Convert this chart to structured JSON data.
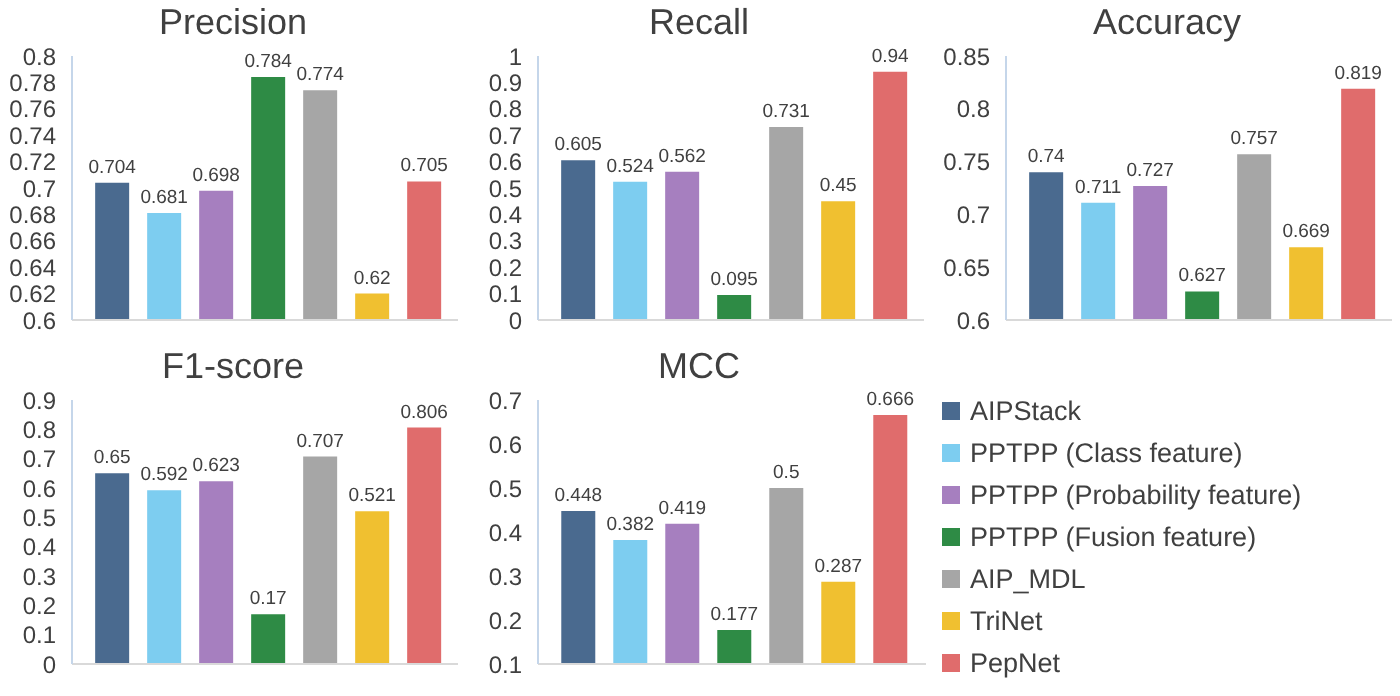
{
  "chart_data": [
    {
      "type": "bar",
      "title": "Precision",
      "categories": [
        null
      ],
      "ylim": [
        0.6,
        0.8
      ],
      "yticks": [
        0.6,
        0.62,
        0.64,
        0.66,
        0.68,
        0.7,
        0.72,
        0.74,
        0.76,
        0.78,
        0.8
      ],
      "data_labels": true,
      "series": [
        {
          "color": "#4a6a8f",
          "values": [
            0.704
          ]
        },
        {
          "color": "#7dcdf0",
          "values": [
            0.681
          ]
        },
        {
          "color": "#a67fbf",
          "values": [
            0.698
          ]
        },
        {
          "color": "#2e8b45",
          "values": [
            0.784
          ]
        },
        {
          "color": "#a6a6a6",
          "values": [
            0.774
          ]
        },
        {
          "color": "#f0c030",
          "values": [
            0.62
          ]
        },
        {
          "color": "#e06c6c",
          "values": [
            0.705
          ]
        }
      ]
    },
    {
      "type": "bar",
      "title": "Recall",
      "categories": [
        null
      ],
      "ylim": [
        0,
        1
      ],
      "yticks": [
        0,
        0.1,
        0.2,
        0.3,
        0.4,
        0.5,
        0.6,
        0.7,
        0.8,
        0.9,
        1
      ],
      "data_labels": true,
      "series": [
        {
          "color": "#4a6a8f",
          "values": [
            0.605
          ]
        },
        {
          "color": "#7dcdf0",
          "values": [
            0.524
          ]
        },
        {
          "color": "#a67fbf",
          "values": [
            0.562
          ]
        },
        {
          "color": "#2e8b45",
          "values": [
            0.095
          ]
        },
        {
          "color": "#a6a6a6",
          "values": [
            0.731
          ]
        },
        {
          "color": "#f0c030",
          "values": [
            0.45
          ]
        },
        {
          "color": "#e06c6c",
          "values": [
            0.94
          ]
        }
      ]
    },
    {
      "type": "bar",
      "title": "Accuracy",
      "categories": [
        null
      ],
      "ylim": [
        0.6,
        0.85
      ],
      "yticks": [
        0.6,
        0.65,
        0.7,
        0.75,
        0.8,
        0.85
      ],
      "data_labels": true,
      "series": [
        {
          "color": "#4a6a8f",
          "values": [
            0.74
          ]
        },
        {
          "color": "#7dcdf0",
          "values": [
            0.711
          ]
        },
        {
          "color": "#a67fbf",
          "values": [
            0.727
          ]
        },
        {
          "color": "#2e8b45",
          "values": [
            0.627
          ]
        },
        {
          "color": "#a6a6a6",
          "values": [
            0.757
          ]
        },
        {
          "color": "#f0c030",
          "values": [
            0.669
          ]
        },
        {
          "color": "#e06c6c",
          "values": [
            0.819
          ]
        }
      ]
    },
    {
      "type": "bar",
      "title": "F1-score",
      "categories": [
        null
      ],
      "ylim": [
        0,
        0.9
      ],
      "yticks": [
        0,
        0.1,
        0.2,
        0.3,
        0.4,
        0.5,
        0.6,
        0.7,
        0.8,
        0.9
      ],
      "data_labels": true,
      "series": [
        {
          "color": "#4a6a8f",
          "values": [
            0.65
          ]
        },
        {
          "color": "#7dcdf0",
          "values": [
            0.592
          ]
        },
        {
          "color": "#a67fbf",
          "values": [
            0.623
          ]
        },
        {
          "color": "#2e8b45",
          "values": [
            0.17
          ]
        },
        {
          "color": "#a6a6a6",
          "values": [
            0.707
          ]
        },
        {
          "color": "#f0c030",
          "values": [
            0.521
          ]
        },
        {
          "color": "#e06c6c",
          "values": [
            0.806
          ]
        }
      ]
    },
    {
      "type": "bar",
      "title": "MCC",
      "categories": [
        null
      ],
      "ylim": [
        0.1,
        0.7
      ],
      "yticks": [
        0.1,
        0.2,
        0.3,
        0.4,
        0.5,
        0.6,
        0.7
      ],
      "data_labels": true,
      "legend": "right",
      "series": [
        {
          "name": "AIPStack",
          "color": "#4a6a8f",
          "values": [
            0.448
          ]
        },
        {
          "name": "PPTPP (Class feature)",
          "color": "#7dcdf0",
          "values": [
            0.382
          ]
        },
        {
          "name": "PPTPP (Probability feature)",
          "color": "#a67fbf",
          "values": [
            0.419
          ]
        },
        {
          "name": "PPTPP (Fusion feature)",
          "color": "#2e8b45",
          "values": [
            0.177
          ]
        },
        {
          "name": "AIP_MDL",
          "color": "#a6a6a6",
          "values": [
            0.5
          ]
        },
        {
          "name": "TriNet",
          "color": "#f0c030",
          "values": [
            0.287
          ]
        },
        {
          "name": "PepNet",
          "color": "#e06c6c",
          "values": [
            0.666
          ]
        }
      ]
    }
  ]
}
